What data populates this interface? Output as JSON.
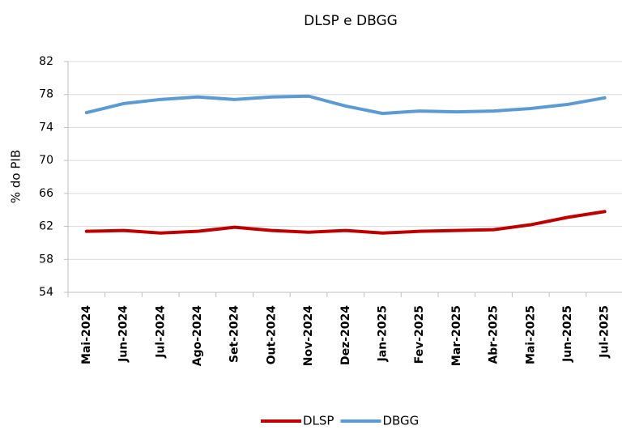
{
  "chart_data": {
    "type": "line",
    "title": "DLSP e DBGG",
    "y_label": "% do PIB",
    "categories": [
      "Mai-2024",
      "Jun-2024",
      "Jul-2024",
      "Ago-2024",
      "Set-2024",
      "Out-2024",
      "Nov-2024",
      "Dez-2024",
      "Jan-2025",
      "Fev-2025",
      "Mar-2025",
      "Abr-2025",
      "Mai-2025",
      "Jun-2025",
      "Jul-2025"
    ],
    "series": [
      {
        "name": "DLSP",
        "color": "#c00000",
        "values": [
          61.4,
          61.5,
          61.2,
          61.4,
          61.9,
          61.5,
          61.3,
          61.5,
          61.2,
          61.4,
          61.5,
          61.6,
          62.2,
          63.1,
          63.8
        ]
      },
      {
        "name": "DBGG",
        "color": "#5b9bd5",
        "values": [
          75.8,
          76.9,
          77.4,
          77.7,
          77.4,
          77.7,
          77.8,
          76.6,
          75.7,
          76.0,
          75.9,
          76.0,
          76.3,
          76.8,
          77.6
        ]
      }
    ],
    "ylim": [
      54,
      82
    ],
    "yticks": [
      54,
      58,
      62,
      66,
      70,
      74,
      78,
      82
    ],
    "grid": true,
    "legend": "bottom"
  }
}
